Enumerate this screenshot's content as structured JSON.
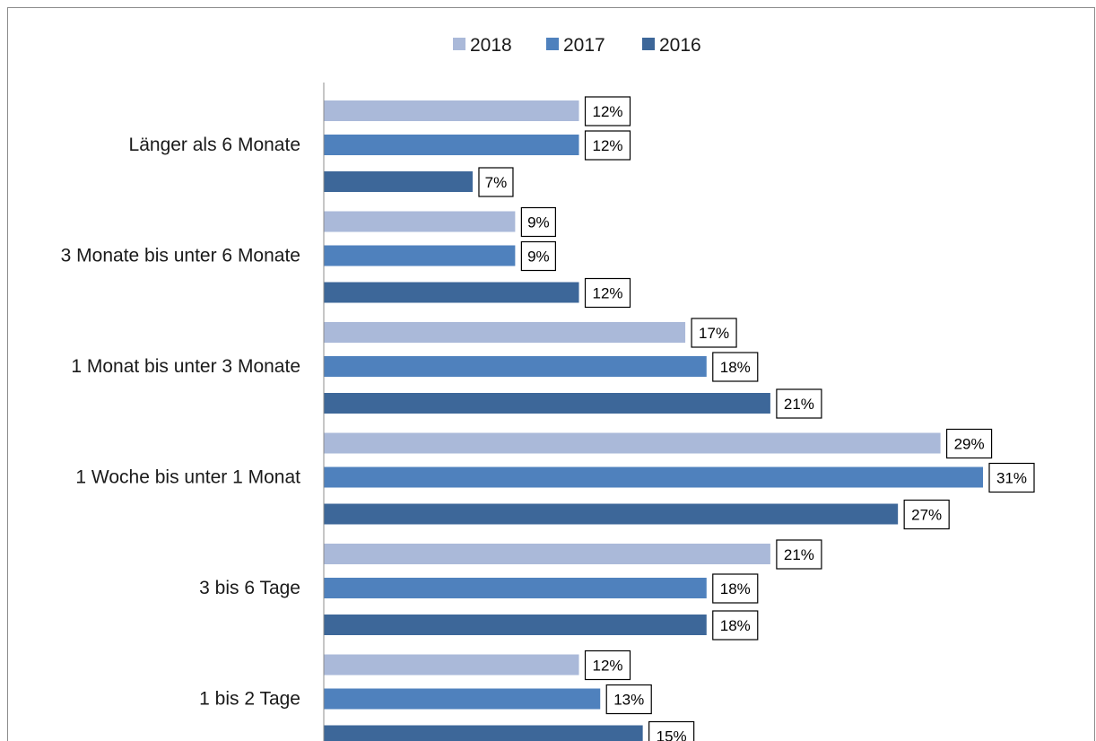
{
  "chart_data": {
    "type": "bar",
    "orientation": "horizontal",
    "categories": [
      "Länger als 6 Monate",
      "3 Monate bis unter 6 Monate",
      "1 Monat bis unter 3 Monate",
      "1 Woche bis unter 1 Monat",
      "3 bis 6 Tage",
      "1 bis 2 Tage"
    ],
    "series": [
      {
        "name": "2018",
        "color": "#aab9d9",
        "values": [
          12,
          9,
          17,
          29,
          21,
          12
        ]
      },
      {
        "name": "2017",
        "color": "#4f81bd",
        "values": [
          12,
          9,
          18,
          31,
          18,
          13
        ]
      },
      {
        "name": "2016",
        "color": "#3d6799",
        "values": [
          7,
          12,
          21,
          27,
          18,
          15
        ]
      }
    ],
    "value_format": "{v}%",
    "xlim": [
      0,
      33
    ],
    "grid": false,
    "legend_position": "top",
    "title": "",
    "xlabel": "",
    "ylabel": ""
  }
}
